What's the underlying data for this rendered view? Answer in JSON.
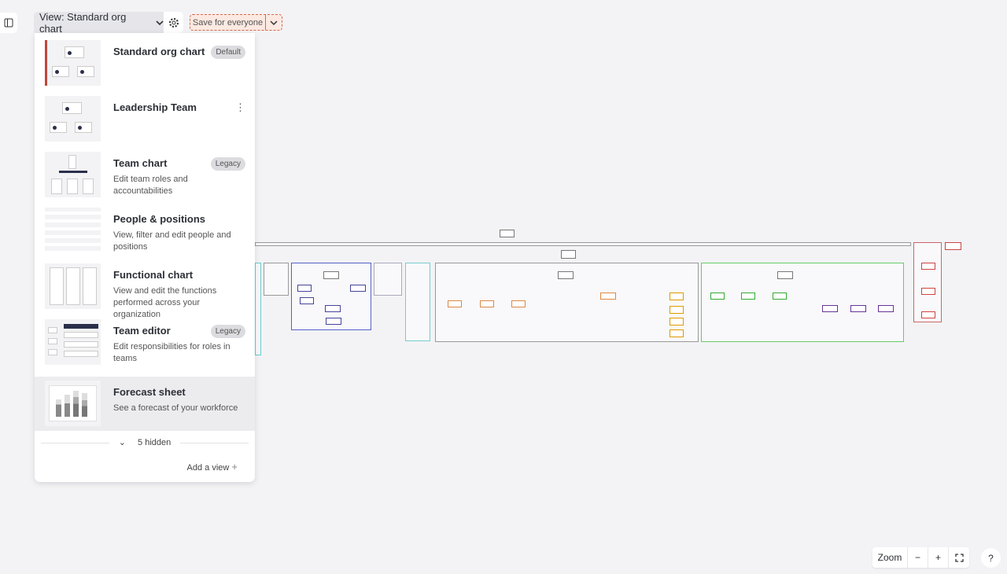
{
  "toolbar": {
    "view_label": "View: Standard org chart",
    "save_label": "Save for everyone"
  },
  "menu": {
    "items": [
      {
        "title": "Standard org chart",
        "badge": "Default",
        "desc": "",
        "selected": true
      },
      {
        "title": "Leadership Team",
        "badge": "",
        "desc": ""
      },
      {
        "title": "Team chart",
        "badge": "Legacy",
        "desc": "Edit team roles and accountabilities"
      },
      {
        "title": "People & positions",
        "badge": "",
        "desc": "View, filter and edit people and positions"
      },
      {
        "title": "Functional chart",
        "badge": "",
        "desc": "View and edit the functions performed across your organization"
      },
      {
        "title": "Team editor",
        "badge": "Legacy",
        "desc": "Edit responsibilities for roles in teams"
      },
      {
        "title": "Forecast sheet",
        "badge": "",
        "desc": "See a forecast of your workforce",
        "hovered": true
      }
    ],
    "hidden_label": "5 hidden",
    "add_view_label": "Add a view"
  },
  "zoom": {
    "label": "Zoom",
    "minus": "−",
    "plus": "+"
  },
  "help": "?",
  "colors": {
    "accent": "#c2463b",
    "save_bg": "#fbe9e2"
  }
}
